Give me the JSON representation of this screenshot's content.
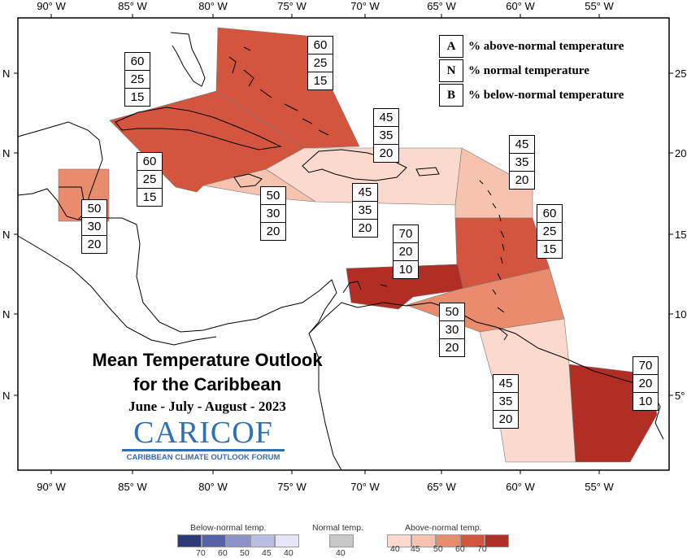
{
  "colors": {
    "water": "#ffffff",
    "above40": "#fbd9cd",
    "above45": "#f6c3af",
    "above50": "#e98b6d",
    "above60": "#d4553d",
    "above70": "#b12e24",
    "normal": "#c8c8c8",
    "below70": "#2c3a78",
    "below60": "#5562a8",
    "below50": "#8a92c8",
    "below45": "#b9bde2",
    "below40": "#e4e6f5"
  },
  "axes": {
    "x_ticks": [
      "90° W",
      "85° W",
      "80° W",
      "75° W",
      "70° W",
      "65° W",
      "60° W",
      "55° W"
    ],
    "y_left_label": "N",
    "y_right_ticks": [
      "25°",
      "20°",
      "15°",
      "10°",
      "5°"
    ]
  },
  "key": {
    "rows": [
      {
        "letter": "A",
        "text": "% above-normal temperature"
      },
      {
        "letter": "N",
        "text": "% normal temperature"
      },
      {
        "letter": "B",
        "text": "% below-normal temperature"
      }
    ]
  },
  "probability_boxes": [
    {
      "region": "cuba-west",
      "values": [
        "60",
        "25",
        "15"
      ]
    },
    {
      "region": "bahamas",
      "values": [
        "60",
        "25",
        "15"
      ]
    },
    {
      "region": "caribbean-nw",
      "values": [
        "60",
        "25",
        "15"
      ]
    },
    {
      "region": "belize",
      "values": [
        "50",
        "30",
        "20"
      ]
    },
    {
      "region": "jamaica",
      "values": [
        "50",
        "30",
        "20"
      ]
    },
    {
      "region": "hispaniola",
      "values": [
        "45",
        "35",
        "20"
      ]
    },
    {
      "region": "turks-caicos",
      "values": [
        "45",
        "35",
        "20"
      ]
    },
    {
      "region": "leeward-islands",
      "values": [
        "45",
        "35",
        "20"
      ]
    },
    {
      "region": "windward-islands",
      "values": [
        "60",
        "25",
        "15"
      ]
    },
    {
      "region": "abc-islands",
      "values": [
        "70",
        "20",
        "10"
      ]
    },
    {
      "region": "trinidad",
      "values": [
        "50",
        "30",
        "20"
      ]
    },
    {
      "region": "guyana",
      "values": [
        "45",
        "35",
        "20"
      ]
    },
    {
      "region": "suriname",
      "values": [
        "70",
        "20",
        "10"
      ]
    }
  ],
  "title": {
    "line1": "Mean Temperature Outlook",
    "line2": "for the Caribbean",
    "period": "June - July - August - 2023"
  },
  "logo": {
    "name": "CARICOF",
    "subtitle": "CARIBBEAN CLIMATE OUTLOOK FORUM"
  },
  "legend": {
    "below_label": "Below-normal temp.",
    "normal_label": "Normal temp.",
    "above_label": "Above-normal temp.",
    "below_values": [
      "70",
      "60",
      "50",
      "45",
      "40"
    ],
    "normal_value": "40",
    "above_values": [
      "40",
      "45",
      "50",
      "60",
      "70"
    ]
  }
}
